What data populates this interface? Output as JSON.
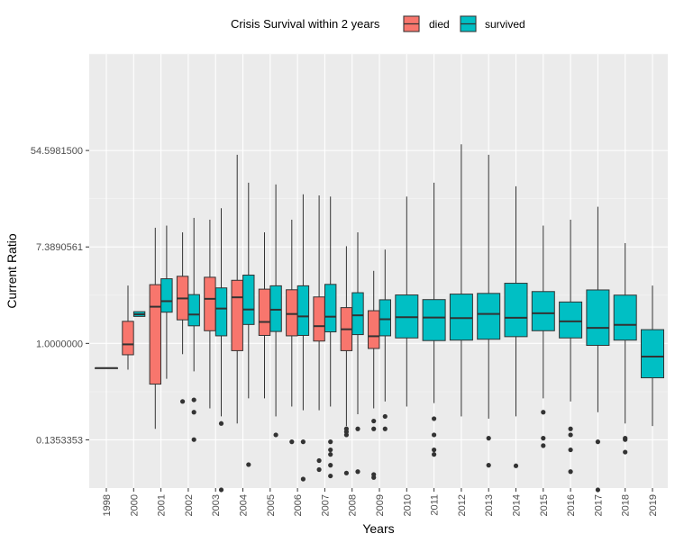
{
  "chart_data": {
    "type": "boxplot",
    "xlabel": "Years",
    "ylabel": "Current Ratio",
    "y_scale": "log",
    "ylim": [
      0.0498,
      403.43
    ],
    "y_ticks": [
      "54.5981500",
      "7.3890561",
      "1.0000000",
      "0.1353353"
    ],
    "y_tick_values": [
      54.59815,
      7.3890561,
      1.0,
      0.1353353
    ],
    "categories": [
      "1998",
      "2000",
      "2001",
      "2002",
      "2003",
      "2004",
      "2005",
      "2006",
      "2007",
      "2008",
      "2009",
      "2010",
      "2011",
      "2012",
      "2013",
      "2014",
      "2015",
      "2016",
      "2017",
      "2018",
      "2019"
    ],
    "legend": {
      "title": "Crisis Survival within 2 years",
      "position": "top",
      "entries": [
        {
          "label": "died",
          "color": "#F8766D"
        },
        {
          "label": "survived",
          "color": "#00BFC4"
        }
      ]
    },
    "series": [
      {
        "name": "died",
        "color": "#F8766D",
        "boxes": [
          {
            "year": "1998",
            "q1": 0.6,
            "median": 0.6,
            "q3": 0.6,
            "lo": 0.6,
            "hi": 0.6,
            "out": []
          },
          {
            "year": "2000",
            "q1": 0.79,
            "median": 0.98,
            "q3": 1.58,
            "lo": 0.58,
            "hi": 3.32,
            "out": []
          },
          {
            "year": "2001",
            "q1": 0.43,
            "median": 2.14,
            "q3": 3.38,
            "lo": 0.17,
            "hi": 11.0,
            "out": []
          },
          {
            "year": "2002",
            "q1": 1.63,
            "median": 2.54,
            "q3": 4.02,
            "lo": 0.8,
            "hi": 10.0,
            "out": [
              0.3
            ]
          },
          {
            "year": "2003",
            "q1": 1.3,
            "median": 2.52,
            "q3": 3.94,
            "lo": 0.26,
            "hi": 13.0,
            "out": []
          },
          {
            "year": "2004",
            "q1": 0.86,
            "median": 2.6,
            "q3": 3.7,
            "lo": 0.19,
            "hi": 50.0,
            "out": []
          },
          {
            "year": "2005",
            "q1": 1.18,
            "median": 1.56,
            "q3": 3.08,
            "lo": 0.32,
            "hi": 10.0,
            "out": []
          },
          {
            "year": "2006",
            "q1": 1.17,
            "median": 1.84,
            "q3": 3.04,
            "lo": 0.27,
            "hi": 13.0,
            "out": [
              0.13
            ]
          },
          {
            "year": "2007",
            "q1": 1.05,
            "median": 1.43,
            "q3": 2.62,
            "lo": 0.25,
            "hi": 21.5,
            "out": [
              0.088,
              0.073
            ]
          },
          {
            "year": "2008",
            "q1": 0.86,
            "median": 1.34,
            "q3": 2.1,
            "lo": 0.18,
            "hi": 7.5,
            "out": [
              0.17,
              0.16,
              0.15,
              0.068
            ]
          },
          {
            "year": "2009",
            "q1": 0.9,
            "median": 1.16,
            "q3": 1.97,
            "lo": 0.26,
            "hi": 4.5,
            "out": [
              0.2,
              0.17,
              0.066,
              0.062
            ]
          }
        ]
      },
      {
        "name": "survived",
        "color": "#00BFC4",
        "boxes": [
          {
            "year": "2000",
            "q1": 1.75,
            "median": 1.83,
            "q3": 1.93,
            "lo": 1.75,
            "hi": 1.93,
            "out": []
          },
          {
            "year": "2001",
            "q1": 1.91,
            "median": 2.4,
            "q3": 3.82,
            "lo": 0.48,
            "hi": 11.5,
            "out": []
          },
          {
            "year": "2002",
            "q1": 1.44,
            "median": 1.82,
            "q3": 2.75,
            "lo": 0.56,
            "hi": 13.5,
            "out": [
              0.31,
              0.24,
              0.136
            ]
          },
          {
            "year": "2003",
            "q1": 1.17,
            "median": 2.06,
            "q3": 3.16,
            "lo": 0.22,
            "hi": 16.5,
            "out": [
              0.19,
              0.048
            ]
          },
          {
            "year": "2004",
            "q1": 1.48,
            "median": 2.02,
            "q3": 4.12,
            "lo": 0.32,
            "hi": 28.0,
            "out": [
              0.081
            ]
          },
          {
            "year": "2005",
            "q1": 1.28,
            "median": 2.01,
            "q3": 3.3,
            "lo": 0.22,
            "hi": 27.0,
            "out": [
              0.15
            ]
          },
          {
            "year": "2006",
            "q1": 1.18,
            "median": 1.75,
            "q3": 3.3,
            "lo": 0.25,
            "hi": 22.0,
            "out": [
              0.13,
              0.06
            ]
          },
          {
            "year": "2007",
            "q1": 1.27,
            "median": 1.74,
            "q3": 3.4,
            "lo": 0.27,
            "hi": 21.0,
            "out": [
              0.13,
              0.11,
              0.1,
              0.08,
              0.064
            ]
          },
          {
            "year": "2008",
            "q1": 1.2,
            "median": 1.79,
            "q3": 2.86,
            "lo": 0.23,
            "hi": 10.0,
            "out": [
              0.17,
              0.07
            ]
          },
          {
            "year": "2009",
            "q1": 1.17,
            "median": 1.65,
            "q3": 2.47,
            "lo": 0.3,
            "hi": 7.0,
            "out": [
              0.22,
              0.17
            ]
          },
          {
            "year": "2010",
            "q1": 1.12,
            "median": 1.72,
            "q3": 2.73,
            "lo": 0.27,
            "hi": 21.0,
            "out": []
          },
          {
            "year": "2011",
            "q1": 1.06,
            "median": 1.71,
            "q3": 2.48,
            "lo": 0.29,
            "hi": 28.0,
            "out": [
              0.21,
              0.15,
              0.11,
              0.1
            ]
          },
          {
            "year": "2012",
            "q1": 1.07,
            "median": 1.69,
            "q3": 2.78,
            "lo": 0.22,
            "hi": 62.0,
            "out": []
          },
          {
            "year": "2013",
            "q1": 1.09,
            "median": 1.84,
            "q3": 2.82,
            "lo": 0.21,
            "hi": 50.0,
            "out": [
              0.14,
              0.08
            ]
          },
          {
            "year": "2014",
            "q1": 1.15,
            "median": 1.7,
            "q3": 3.48,
            "lo": 0.22,
            "hi": 26.0,
            "out": [
              0.079
            ]
          },
          {
            "year": "2015",
            "q1": 1.3,
            "median": 1.87,
            "q3": 2.93,
            "lo": 0.32,
            "hi": 11.5,
            "out": [
              0.24,
              0.14,
              0.12
            ]
          },
          {
            "year": "2016",
            "q1": 1.12,
            "median": 1.58,
            "q3": 2.36,
            "lo": 0.3,
            "hi": 13.0,
            "out": [
              0.17,
              0.15,
              0.11,
              0.07
            ]
          },
          {
            "year": "2017",
            "q1": 0.96,
            "median": 1.38,
            "q3": 3.03,
            "lo": 0.24,
            "hi": 17.0,
            "out": [
              0.13,
              0.048
            ]
          },
          {
            "year": "2018",
            "q1": 1.07,
            "median": 1.47,
            "q3": 2.72,
            "lo": 0.19,
            "hi": 8.0,
            "out": [
              0.14,
              0.136,
              0.105
            ]
          },
          {
            "year": "2019",
            "q1": 0.49,
            "median": 0.76,
            "q3": 1.33,
            "lo": 0.18,
            "hi": 3.32,
            "out": []
          }
        ]
      }
    ]
  }
}
